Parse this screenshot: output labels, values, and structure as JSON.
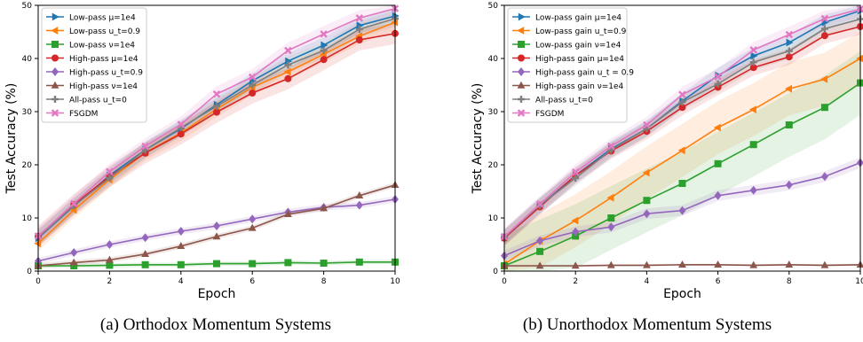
{
  "captions": {
    "a": "(a)  Orthodox Momentum Systems",
    "b": "(b)  Unorthodox Momentum Systems"
  },
  "chart_data": [
    {
      "type": "line",
      "id": "a",
      "xlabel": "Epoch",
      "ylabel": "Test Accuracy (%)",
      "xlim": [
        0,
        10
      ],
      "ylim": [
        0,
        50
      ],
      "xticks": [
        0,
        2,
        4,
        6,
        8,
        10
      ],
      "yticks": [
        0,
        10,
        20,
        30,
        40,
        50
      ],
      "grid": false,
      "legend_position": "top-left",
      "x": [
        0,
        1,
        2,
        3,
        4,
        5,
        6,
        7,
        8,
        9,
        10
      ],
      "series": [
        {
          "name": "Low-pass μ=1e4",
          "color": "#1f77b4",
          "marker": "triangle-right",
          "band": 1.5,
          "values": [
            6.2,
            12.2,
            18.0,
            22.8,
            26.8,
            31.3,
            35.8,
            39.5,
            42.5,
            46.2,
            48.0
          ]
        },
        {
          "name": "Low-pass u_t=0.9",
          "color": "#ff7f0e",
          "marker": "triangle-left",
          "band": 1.5,
          "values": [
            5.2,
            11.5,
            17.2,
            22.3,
            26.0,
            30.5,
            34.6,
            37.5,
            40.8,
            44.2,
            46.8
          ]
        },
        {
          "name": "Low-pass ν=1e4",
          "color": "#2ca02c",
          "marker": "square",
          "band": 0.4,
          "values": [
            1.0,
            1.0,
            1.1,
            1.2,
            1.2,
            1.4,
            1.4,
            1.6,
            1.5,
            1.7,
            1.7
          ]
        },
        {
          "name": "High-pass μ=1e4",
          "color": "#d62728",
          "marker": "circle",
          "band": 2.0,
          "values": [
            6.5,
            12.5,
            17.8,
            22.2,
            25.8,
            29.9,
            33.5,
            36.2,
            39.8,
            43.5,
            44.7
          ]
        },
        {
          "name": "High-pass u_t=0.9",
          "color": "#9467bd",
          "marker": "diamond",
          "band": 0.6,
          "values": [
            1.9,
            3.5,
            5.0,
            6.3,
            7.5,
            8.5,
            9.8,
            11.1,
            12.0,
            12.4,
            13.5
          ]
        },
        {
          "name": "High-pass ν=1e4",
          "color": "#8c564b",
          "marker": "triangle-up",
          "band": 0.5,
          "values": [
            1.0,
            1.6,
            2.1,
            3.2,
            4.7,
            6.5,
            8.1,
            10.7,
            11.8,
            14.2,
            16.2
          ]
        },
        {
          "name": "All-pass u_t=0",
          "color": "#7f7f7f",
          "marker": "plus",
          "band": 1.5,
          "values": [
            6.3,
            12.3,
            17.5,
            22.8,
            27.0,
            31.0,
            35.0,
            38.8,
            41.5,
            45.5,
            47.5
          ]
        },
        {
          "name": "FSGDM",
          "color": "#e377c2",
          "marker": "x",
          "band": 1.5,
          "values": [
            6.6,
            12.7,
            18.7,
            23.5,
            27.6,
            33.3,
            36.5,
            41.5,
            44.6,
            47.6,
            49.4
          ]
        }
      ]
    },
    {
      "type": "line",
      "id": "b",
      "xlabel": "Epoch",
      "ylabel": "Test Accuracy (%)",
      "xlim": [
        0,
        10
      ],
      "ylim": [
        0,
        50
      ],
      "xticks": [
        0,
        2,
        4,
        6,
        8,
        10
      ],
      "yticks": [
        0,
        10,
        20,
        30,
        40,
        50
      ],
      "grid": false,
      "legend_position": "top-left",
      "x": [
        0,
        1,
        2,
        3,
        4,
        5,
        6,
        7,
        8,
        9,
        10
      ],
      "series": [
        {
          "name": "Low-pass gain μ=1e4",
          "color": "#1f77b4",
          "marker": "triangle-right",
          "band": 1.5,
          "values": [
            6.3,
            12.3,
            18.0,
            23.0,
            26.8,
            32.0,
            36.8,
            40.5,
            43.0,
            46.8,
            49.0
          ]
        },
        {
          "name": "Low-pass gain u_t=0.9",
          "color": "#ff7f0e",
          "marker": "triangle-left",
          "band": 5.0,
          "values": [
            1.3,
            5.7,
            9.5,
            13.8,
            18.5,
            22.7,
            27.0,
            30.4,
            34.3,
            36.1,
            40.0
          ]
        },
        {
          "name": "Low-pass gain ν=1e4",
          "color": "#2ca02c",
          "marker": "square",
          "band": 6.0,
          "values": [
            1.0,
            3.7,
            6.6,
            10.0,
            13.3,
            16.5,
            20.2,
            23.8,
            27.5,
            30.8,
            35.4
          ]
        },
        {
          "name": "High-pass gain μ=1e4",
          "color": "#d62728",
          "marker": "circle",
          "band": 1.5,
          "values": [
            6.2,
            12.1,
            18.0,
            22.6,
            26.3,
            30.8,
            34.6,
            38.3,
            40.3,
            44.3,
            46.0
          ]
        },
        {
          "name": "High-pass gain u_t = 0.9",
          "color": "#9467bd",
          "marker": "diamond",
          "band": 1.0,
          "values": [
            2.9,
            5.7,
            7.4,
            8.3,
            10.8,
            11.4,
            14.2,
            15.2,
            16.2,
            17.8,
            20.4
          ]
        },
        {
          "name": "High-pass gain ν=1e4",
          "color": "#8c564b",
          "marker": "triangle-up",
          "band": 0.2,
          "values": [
            1.0,
            1.0,
            1.0,
            1.1,
            1.1,
            1.2,
            1.2,
            1.1,
            1.2,
            1.1,
            1.2
          ]
        },
        {
          "name": "All-pass u_t=0",
          "color": "#7f7f7f",
          "marker": "plus",
          "band": 1.5,
          "values": [
            6.4,
            12.4,
            17.5,
            22.8,
            26.8,
            31.8,
            35.2,
            39.3,
            41.4,
            45.6,
            47.4
          ]
        },
        {
          "name": "FSGDM",
          "color": "#e377c2",
          "marker": "x",
          "band": 1.5,
          "values": [
            6.5,
            12.6,
            18.6,
            23.5,
            27.5,
            33.2,
            36.6,
            41.6,
            44.5,
            47.5,
            49.3
          ]
        }
      ]
    }
  ]
}
